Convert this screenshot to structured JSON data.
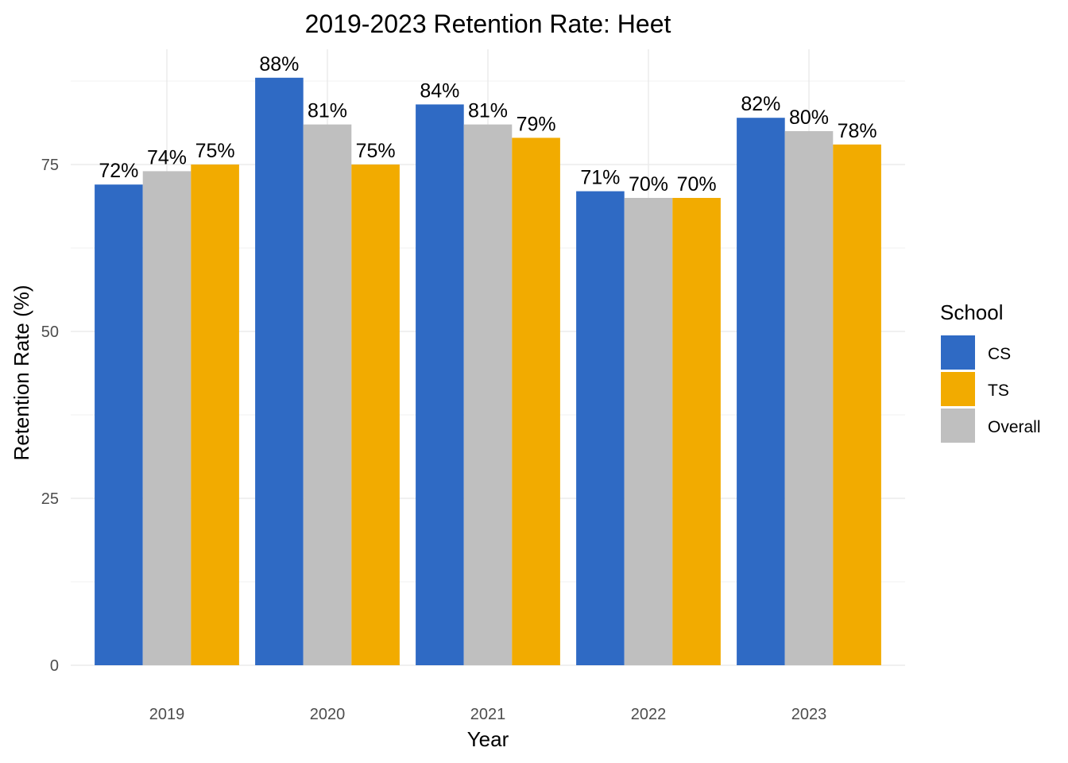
{
  "chart_data": {
    "type": "bar",
    "title": "2019-2023 Retention Rate: Heet",
    "xlabel": "Year",
    "ylabel": "Retention Rate (%)",
    "categories": [
      "2019",
      "2020",
      "2021",
      "2022",
      "2023"
    ],
    "series": [
      {
        "name": "CS",
        "color": "#2f6ac4",
        "values": [
          72,
          88,
          84,
          71,
          82
        ]
      },
      {
        "name": "Overall",
        "color": "#bfbfbf",
        "values": [
          74,
          81,
          81,
          70,
          80
        ]
      },
      {
        "name": "TS",
        "color": "#f2ab00",
        "values": [
          75,
          75,
          79,
          70,
          78
        ]
      }
    ],
    "data_label_suffix": "%",
    "ylim": [
      0,
      91
    ],
    "yticks": [
      0,
      25,
      50,
      75
    ],
    "grid": true,
    "legend": {
      "title": "School",
      "position": "right",
      "order": [
        "CS",
        "TS",
        "Overall"
      ]
    }
  }
}
